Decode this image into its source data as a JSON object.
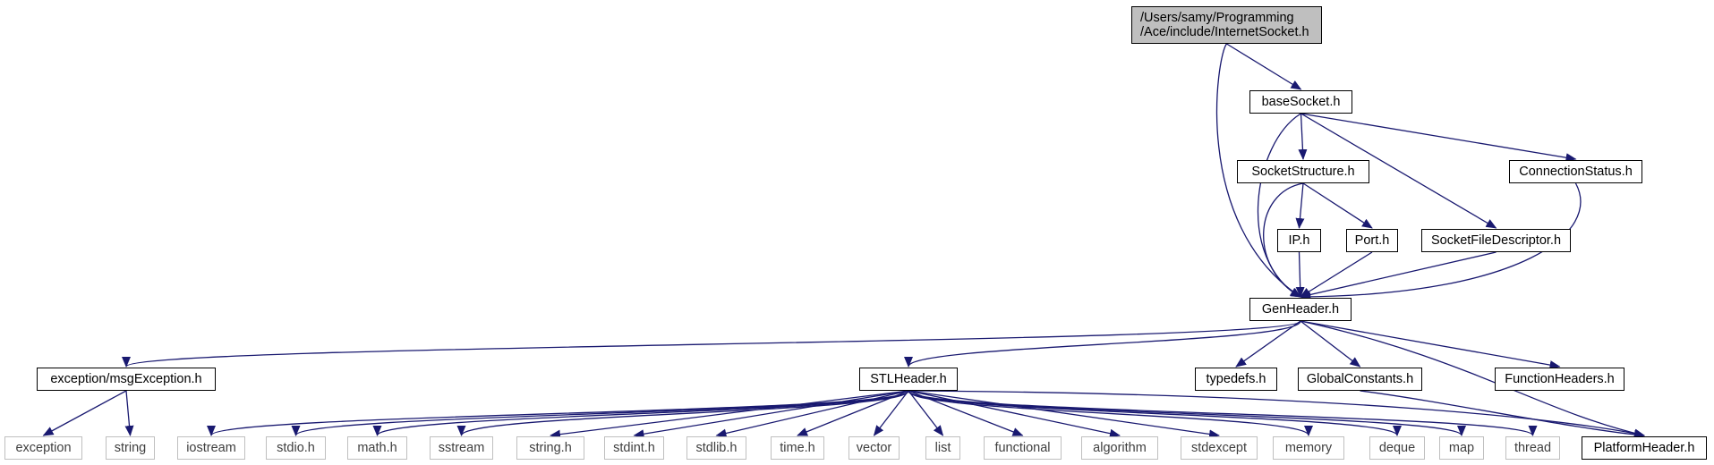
{
  "graph": {
    "root": {
      "line1": "/Users/samy/Programming",
      "line2": "/Ace/include/InternetSocket.h"
    },
    "nodes": [
      {
        "id": "baseSocket",
        "label": "baseSocket.h",
        "kind": "local"
      },
      {
        "id": "SocketStructure",
        "label": "SocketStructure.h",
        "kind": "local"
      },
      {
        "id": "ConnectionStatus",
        "label": "ConnectionStatus.h",
        "kind": "local"
      },
      {
        "id": "IP",
        "label": "IP.h",
        "kind": "local"
      },
      {
        "id": "Port",
        "label": "Port.h",
        "kind": "local"
      },
      {
        "id": "SocketFileDescriptor",
        "label": "SocketFileDescriptor.h",
        "kind": "local"
      },
      {
        "id": "GenHeader",
        "label": "GenHeader.h",
        "kind": "local"
      },
      {
        "id": "msgException",
        "label": "exception/msgException.h",
        "kind": "local"
      },
      {
        "id": "STLHeader",
        "label": "STLHeader.h",
        "kind": "local"
      },
      {
        "id": "typedefs",
        "label": "typedefs.h",
        "kind": "local"
      },
      {
        "id": "GlobalConstants",
        "label": "GlobalConstants.h",
        "kind": "local"
      },
      {
        "id": "FunctionHeaders",
        "label": "FunctionHeaders.h",
        "kind": "local"
      },
      {
        "id": "PlatformHeader",
        "label": "PlatformHeader.h",
        "kind": "local"
      },
      {
        "id": "exception",
        "label": "exception",
        "kind": "system"
      },
      {
        "id": "string",
        "label": "string",
        "kind": "system"
      },
      {
        "id": "iostream",
        "label": "iostream",
        "kind": "system"
      },
      {
        "id": "stdio",
        "label": "stdio.h",
        "kind": "system"
      },
      {
        "id": "math",
        "label": "math.h",
        "kind": "system"
      },
      {
        "id": "sstream",
        "label": "sstream",
        "kind": "system"
      },
      {
        "id": "stringh",
        "label": "string.h",
        "kind": "system"
      },
      {
        "id": "stdint",
        "label": "stdint.h",
        "kind": "system"
      },
      {
        "id": "stdlib",
        "label": "stdlib.h",
        "kind": "system"
      },
      {
        "id": "time",
        "label": "time.h",
        "kind": "system"
      },
      {
        "id": "vector",
        "label": "vector",
        "kind": "system"
      },
      {
        "id": "list",
        "label": "list",
        "kind": "system"
      },
      {
        "id": "functional",
        "label": "functional",
        "kind": "system"
      },
      {
        "id": "algorithm",
        "label": "algorithm",
        "kind": "system"
      },
      {
        "id": "stdexcept",
        "label": "stdexcept",
        "kind": "system"
      },
      {
        "id": "memory",
        "label": "memory",
        "kind": "system"
      },
      {
        "id": "deque",
        "label": "deque",
        "kind": "system"
      },
      {
        "id": "map",
        "label": "map",
        "kind": "system"
      },
      {
        "id": "thread",
        "label": "thread",
        "kind": "system"
      }
    ],
    "edges": [
      [
        "root",
        "baseSocket"
      ],
      [
        "root",
        "GenHeader"
      ],
      [
        "baseSocket",
        "SocketStructure"
      ],
      [
        "baseSocket",
        "ConnectionStatus"
      ],
      [
        "baseSocket",
        "SocketFileDescriptor"
      ],
      [
        "baseSocket",
        "GenHeader"
      ],
      [
        "SocketStructure",
        "IP"
      ],
      [
        "SocketStructure",
        "Port"
      ],
      [
        "SocketStructure",
        "GenHeader"
      ],
      [
        "IP",
        "GenHeader"
      ],
      [
        "Port",
        "GenHeader"
      ],
      [
        "SocketFileDescriptor",
        "GenHeader"
      ],
      [
        "ConnectionStatus",
        "GenHeader"
      ],
      [
        "GenHeader",
        "msgException"
      ],
      [
        "GenHeader",
        "STLHeader"
      ],
      [
        "GenHeader",
        "typedefs"
      ],
      [
        "GenHeader",
        "GlobalConstants"
      ],
      [
        "GenHeader",
        "FunctionHeaders"
      ],
      [
        "GenHeader",
        "PlatformHeader"
      ],
      [
        "GlobalConstants",
        "PlatformHeader"
      ],
      [
        "msgException",
        "exception"
      ],
      [
        "msgException",
        "string"
      ],
      [
        "STLHeader",
        "iostream"
      ],
      [
        "STLHeader",
        "stdio"
      ],
      [
        "STLHeader",
        "math"
      ],
      [
        "STLHeader",
        "sstream"
      ],
      [
        "STLHeader",
        "stringh"
      ],
      [
        "STLHeader",
        "stdint"
      ],
      [
        "STLHeader",
        "stdlib"
      ],
      [
        "STLHeader",
        "time"
      ],
      [
        "STLHeader",
        "vector"
      ],
      [
        "STLHeader",
        "list"
      ],
      [
        "STLHeader",
        "functional"
      ],
      [
        "STLHeader",
        "algorithm"
      ],
      [
        "STLHeader",
        "stdexcept"
      ],
      [
        "STLHeader",
        "memory"
      ],
      [
        "STLHeader",
        "deque"
      ],
      [
        "STLHeader",
        "map"
      ],
      [
        "STLHeader",
        "thread"
      ],
      [
        "STLHeader",
        "PlatformHeader"
      ]
    ]
  },
  "colors": {
    "edge": "#191970",
    "root_fill": "#bfbfbf",
    "local_border": "#000000",
    "system_border": "#bfbfbf"
  }
}
